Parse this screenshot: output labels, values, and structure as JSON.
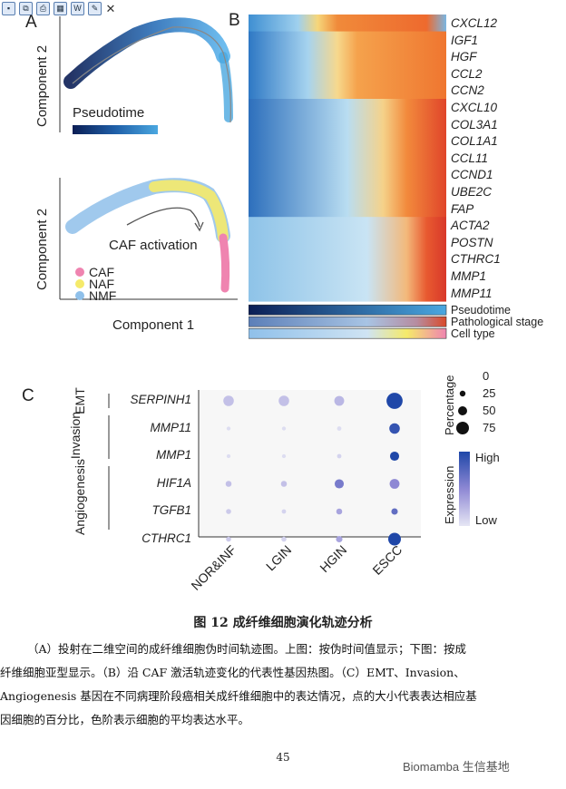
{
  "toolbar": {
    "icons": [
      "save-icon",
      "copy-icon",
      "print-icon",
      "panel-icon",
      "word-icon",
      "edit-icon",
      "close-icon"
    ]
  },
  "panel_a": {
    "label": "A",
    "top": {
      "ylabel": "Component 2",
      "legend_title": "Pseudotime",
      "gradient": [
        "#0b1e55",
        "#1f5fa8",
        "#4aa7e0"
      ]
    },
    "bottom": {
      "ylabel": "Component 2",
      "xlabel": "Component 1",
      "annotation": "CAF activation",
      "legend": [
        {
          "label": "CAF",
          "color": "#ef84b0"
        },
        {
          "label": "NAF",
          "color": "#f5ea6a"
        },
        {
          "label": "NMF",
          "color": "#8fc0ea"
        }
      ]
    }
  },
  "panel_b": {
    "label": "B",
    "genes": [
      "CXCL12",
      "IGF1",
      "HGF",
      "CCL2",
      "CCN2",
      "CXCL10",
      "COL3A1",
      "COL1A1",
      "CCL11",
      "CCND1",
      "UBE2C",
      "FAP",
      "ACTA2",
      "POSTN",
      "CTHRC1",
      "MMP1",
      "MMP11"
    ],
    "annotation_bars": [
      "Pseudotime",
      "Pathological stage",
      "Cell type"
    ]
  },
  "panel_c": {
    "label": "C",
    "chart_data": {
      "type": "dotplot",
      "categories": [
        "NOR&INF",
        "LGIN",
        "HGIN",
        "ESCC"
      ],
      "genes": [
        "SERPINH1",
        "MMP11",
        "MMP1",
        "HIF1A",
        "TGFB1",
        "CTHRC1"
      ],
      "groups": [
        {
          "name": "EMT",
          "genes": [
            "SERPINH1"
          ]
        },
        {
          "name": "Invasion",
          "genes": [
            "MMP11",
            "MMP1"
          ]
        },
        {
          "name": "Angiogenesis",
          "genes": [
            "HIF1A",
            "TGFB1",
            "CTHRC1"
          ]
        }
      ],
      "percentage": [
        [
          35,
          35,
          30,
          95
        ],
        [
          2,
          2,
          3,
          35
        ],
        [
          2,
          2,
          3,
          25
        ],
        [
          8,
          8,
          25,
          30
        ],
        [
          5,
          3,
          8,
          10
        ],
        [
          5,
          5,
          10,
          55
        ]
      ],
      "expression": [
        [
          0.2,
          0.2,
          0.25,
          1.0
        ],
        [
          0.05,
          0.05,
          0.05,
          0.9
        ],
        [
          0.05,
          0.05,
          0.1,
          1.0
        ],
        [
          0.2,
          0.2,
          0.6,
          0.5
        ],
        [
          0.15,
          0.1,
          0.35,
          0.7
        ],
        [
          0.15,
          0.1,
          0.35,
          1.0
        ]
      ],
      "size_legend": {
        "title": "Percentage",
        "values": [
          "0",
          "25",
          "50",
          "75"
        ]
      },
      "color_legend": {
        "title": "Expression",
        "high": "High",
        "low": "Low",
        "low_color": "#e6e6f4",
        "high_color": "#1f47a8"
      }
    }
  },
  "caption": {
    "title": "图 12 成纤维细胞演化轨迹分析",
    "lines": [
      "（A）投射在二维空间的成纤维细胞伪时间轨迹图。上图：按伪时间值显示；下图：按成",
      "纤维细胞亚型显示。（B）沿 CAF 激活轨迹变化的代表性基因热图。（C）EMT、Invasion、",
      "Angiogenesis 基因在不同病理阶段癌相关成纤维细胞中的表达情况，点的大小代表表达相应基",
      "因细胞的百分比，色阶表示细胞的平均表达水平。"
    ]
  },
  "page_number": "45",
  "watermark": "Biomamba 生信基地"
}
